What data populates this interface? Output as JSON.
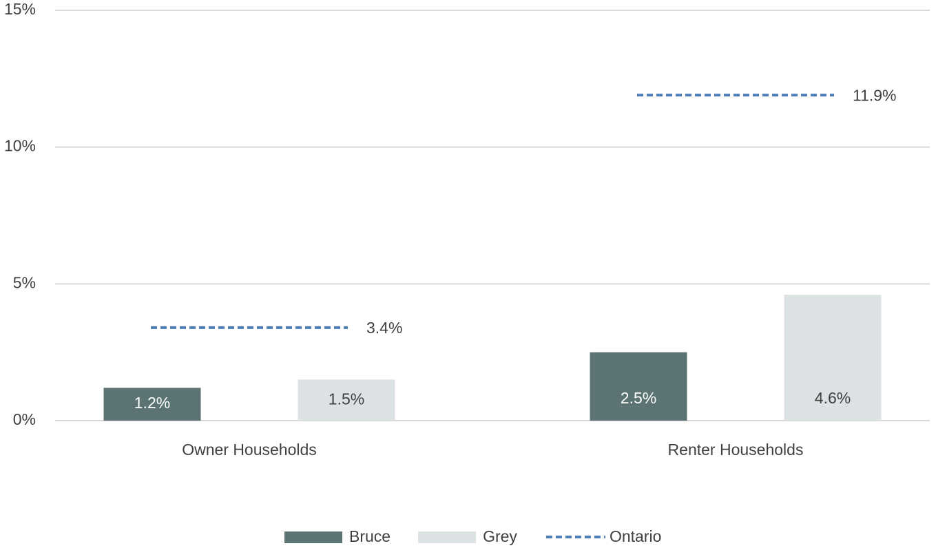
{
  "chart_data": {
    "type": "bar",
    "categories": [
      "Owner Households",
      "Renter Households"
    ],
    "series": [
      {
        "name": "Bruce",
        "color": "#5b7473",
        "values": [
          1.2,
          2.5
        ],
        "value_labels": [
          "1.2%",
          "2.5%"
        ],
        "label_color": "#ffffff"
      },
      {
        "name": "Grey",
        "color": "#dce1e3",
        "values": [
          1.5,
          4.6
        ],
        "value_labels": [
          "1.5%",
          "4.6%"
        ],
        "label_color": "#404040"
      },
      {
        "name": "Ontario",
        "color": "#4f7db8",
        "style": "dashed",
        "values": [
          3.4,
          11.9
        ],
        "value_labels": [
          "3.4%",
          "11.9%"
        ],
        "label_color": "#404040"
      }
    ],
    "ylim": [
      0,
      15
    ],
    "yticks": [
      {
        "value": 0,
        "label": "0%"
      },
      {
        "value": 5,
        "label": "5%"
      },
      {
        "value": 10,
        "label": "10%"
      },
      {
        "value": 15,
        "label": "15%"
      }
    ],
    "grid": true,
    "legend": "bottom"
  }
}
